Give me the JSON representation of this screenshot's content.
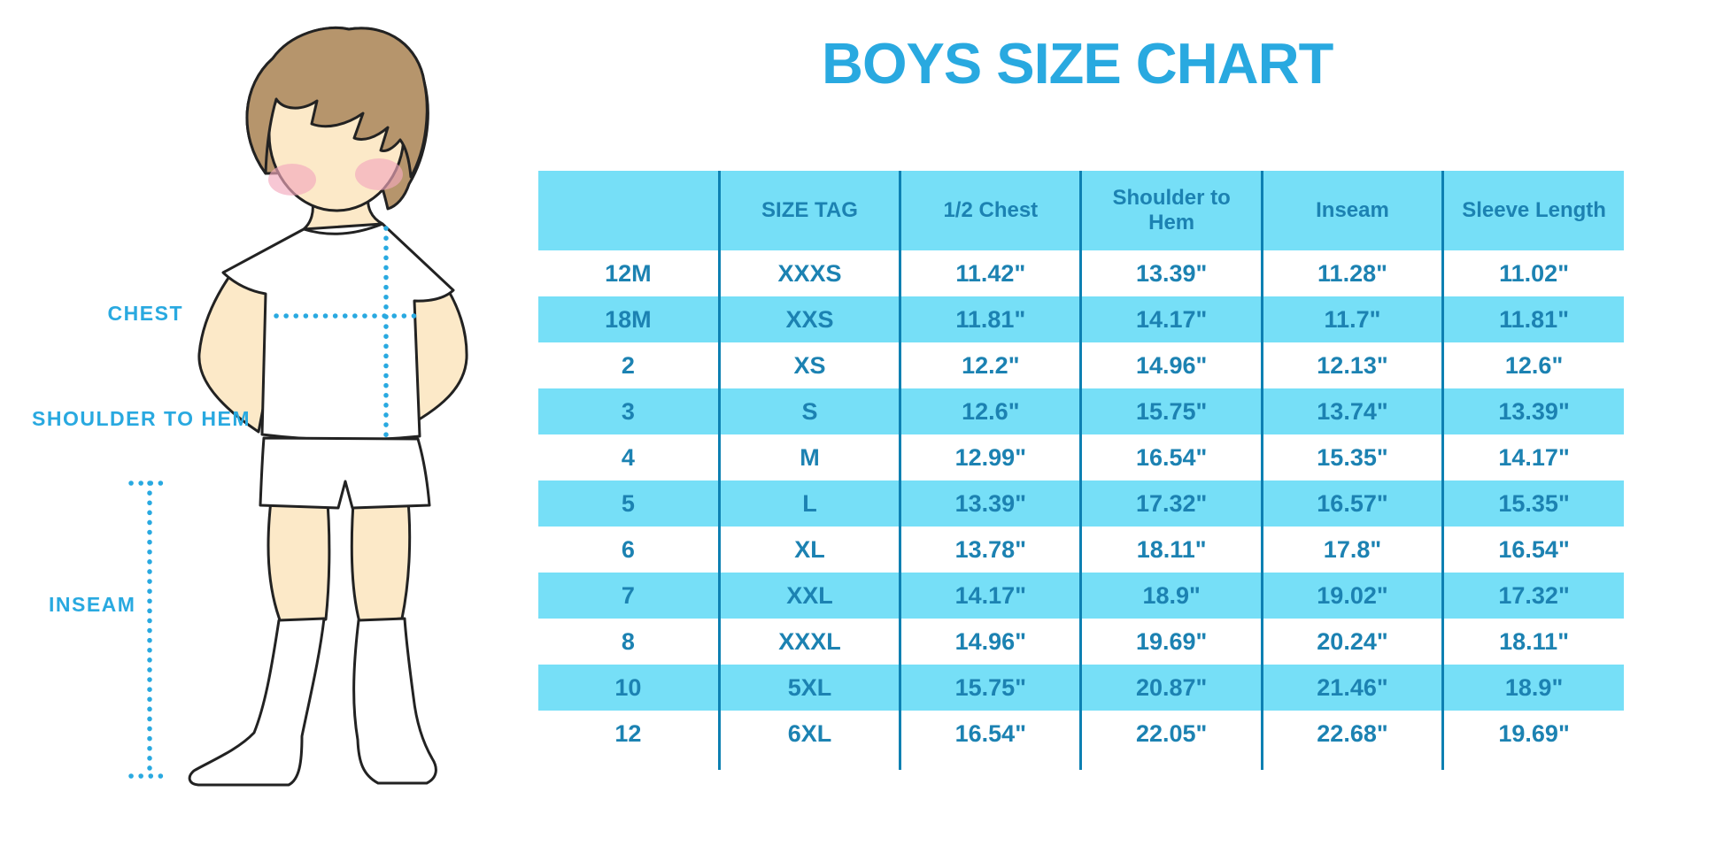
{
  "colors": {
    "accent": "#29a9e0",
    "table-fill": "#76dff7",
    "table-text": "#1c82b2",
    "table-line": "#0d80b2",
    "skin": "#fce9c8",
    "hair": "#b6956c",
    "blush": "#f2a9bd",
    "outline": "#222222"
  },
  "illustration": {
    "labels": {
      "chest": "CHEST",
      "shoulder_to_hem": "SHOULDER TO HEM",
      "inseam": "INSEAM"
    }
  },
  "chart_data": {
    "type": "table",
    "title": "BOYS SIZE CHART",
    "columns": [
      "",
      "SIZE TAG",
      "1/2 Chest",
      "Shoulder to Hem",
      "Inseam",
      "Sleeve Length"
    ],
    "rows": [
      [
        "12M",
        "XXXS",
        "11.42\"",
        "13.39\"",
        "11.28\"",
        "11.02\""
      ],
      [
        "18M",
        "XXS",
        "11.81\"",
        "14.17\"",
        "11.7\"",
        "11.81\""
      ],
      [
        "2",
        "XS",
        "12.2\"",
        "14.96\"",
        "12.13\"",
        "12.6\""
      ],
      [
        "3",
        "S",
        "12.6\"",
        "15.75\"",
        "13.74\"",
        "13.39\""
      ],
      [
        "4",
        "M",
        "12.99\"",
        "16.54\"",
        "15.35\"",
        "14.17\""
      ],
      [
        "5",
        "L",
        "13.39\"",
        "17.32\"",
        "16.57\"",
        "15.35\""
      ],
      [
        "6",
        "XL",
        "13.78\"",
        "18.11\"",
        "17.8\"",
        "16.54\""
      ],
      [
        "7",
        "XXL",
        "14.17\"",
        "18.9\"",
        "19.02\"",
        "17.32\""
      ],
      [
        "8",
        "XXXL",
        "14.96\"",
        "19.69\"",
        "20.24\"",
        "18.11\""
      ],
      [
        "10",
        "5XL",
        "15.75\"",
        "20.87\"",
        "21.46\"",
        "18.9\""
      ],
      [
        "12",
        "6XL",
        "16.54\"",
        "22.05\"",
        "22.68\"",
        "19.69\""
      ]
    ]
  }
}
